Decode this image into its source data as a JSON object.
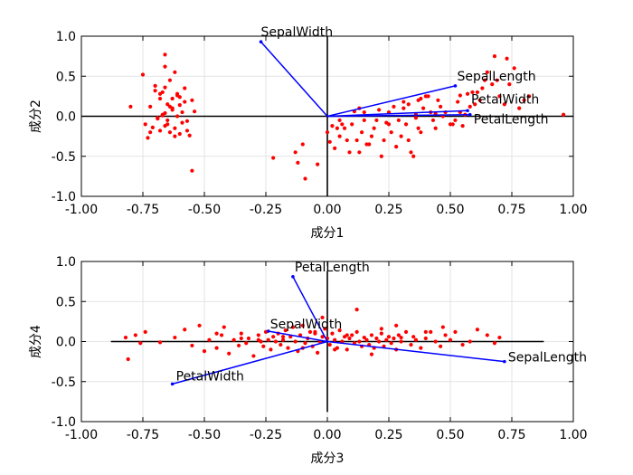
{
  "chart_data": [
    {
      "type": "scatter",
      "subtype": "biplot",
      "xlabel": "成分1",
      "ylabel": "成分2",
      "xlim": [
        -1.0,
        1.0
      ],
      "ylim": [
        -1.0,
        1.0
      ],
      "xticks": [
        "-1.00",
        "-0.75",
        "-0.50",
        "-0.25",
        "0.00",
        "0.25",
        "0.50",
        "0.75",
        "1.00"
      ],
      "yticks": [
        "-1.0",
        "-0.5",
        "0.0",
        "0.5",
        "1.0"
      ],
      "grid": true,
      "vectors": [
        {
          "name": "SepalWidth",
          "x": -0.27,
          "y": 0.93
        },
        {
          "name": "SepalLength",
          "x": 0.52,
          "y": 0.38
        },
        {
          "name": "PetalWidth",
          "x": 0.57,
          "y": 0.07
        },
        {
          "name": "PetalLength",
          "x": 0.58,
          "y": 0.02
        }
      ],
      "points": {
        "x": [
          -0.66,
          -0.62,
          -0.58,
          -0.64,
          -0.7,
          -0.68,
          -0.6,
          -0.55,
          -0.72,
          -0.65,
          -0.63,
          -0.59,
          -0.67,
          -0.61,
          -0.69,
          -0.57,
          -0.74,
          -0.66,
          -0.62,
          -0.68,
          -0.64,
          -0.6,
          -0.56,
          -0.71,
          -0.65,
          -0.63,
          -0.58,
          -0.7,
          -0.67,
          -0.61,
          -0.66,
          -0.59,
          -0.73,
          -0.62,
          -0.68,
          -0.64,
          -0.54,
          -0.69,
          -0.65,
          -0.6,
          -0.63,
          -0.66,
          -0.57,
          -0.61,
          -0.72,
          -0.67,
          -0.8,
          -0.75,
          -0.66,
          -0.55,
          -0.22,
          -0.13,
          -0.12,
          -0.1,
          -0.09,
          -0.04,
          0.01,
          0.0,
          0.02,
          0.03,
          0.05,
          0.05,
          0.07,
          0.08,
          0.09,
          0.1,
          0.12,
          0.13,
          0.14,
          0.15,
          0.15,
          0.17,
          0.18,
          0.19,
          0.2,
          0.22,
          0.23,
          0.25,
          0.25,
          0.26,
          0.28,
          0.29,
          0.3,
          0.31,
          0.32,
          0.33,
          0.34,
          0.35,
          0.36,
          0.37,
          0.38,
          0.39,
          0.4,
          0.42,
          0.43,
          0.44,
          0.45,
          0.46,
          0.48,
          0.5,
          0.52,
          0.53,
          0.54,
          0.55,
          0.56,
          0.58,
          0.6,
          0.61,
          0.62,
          0.65,
          0.67,
          0.68,
          0.7,
          0.72,
          0.74,
          0.76,
          0.78,
          0.8,
          0.82,
          0.96,
          0.13,
          0.21,
          0.27,
          0.33,
          0.37,
          0.41,
          0.47,
          0.51,
          0.57,
          0.63,
          0.69,
          0.73,
          0.44,
          0.36,
          0.24,
          0.16,
          0.06,
          0.04,
          0.11,
          0.31,
          0.38,
          0.54,
          0.59,
          0.64
        ],
        "y": [
          0.77,
          0.55,
          0.35,
          0.45,
          0.32,
          0.28,
          0.24,
          0.2,
          0.12,
          0.15,
          0.08,
          0.05,
          0.02,
          0.0,
          -0.03,
          -0.06,
          -0.1,
          -0.12,
          -0.15,
          -0.18,
          -0.2,
          -0.22,
          -0.24,
          -0.14,
          -0.05,
          0.1,
          0.18,
          0.38,
          0.3,
          0.26,
          0.04,
          -0.08,
          -0.27,
          -0.25,
          0.22,
          0.12,
          0.06,
          -0.02,
          -0.1,
          0.14,
          0.22,
          0.36,
          -0.18,
          0.28,
          -0.2,
          0.01,
          0.12,
          0.52,
          0.62,
          -0.68,
          -0.52,
          -0.45,
          -0.58,
          -0.35,
          -0.78,
          -0.6,
          -0.32,
          -0.2,
          -0.12,
          -0.4,
          -0.25,
          -0.05,
          -0.15,
          -0.3,
          -0.45,
          -0.1,
          -0.3,
          -0.45,
          -0.2,
          -0.05,
          0.05,
          -0.35,
          -0.25,
          -0.15,
          -0.05,
          -0.5,
          -0.3,
          -0.1,
          0.05,
          -0.2,
          -0.38,
          -0.05,
          -0.25,
          0.1,
          -0.1,
          -0.3,
          -0.45,
          -0.5,
          0.02,
          -0.15,
          -0.2,
          0.1,
          0.25,
          0.05,
          -0.05,
          -0.15,
          0.2,
          0.12,
          0.05,
          -0.1,
          -0.05,
          0.18,
          0.05,
          -0.12,
          0.02,
          0.12,
          0.15,
          0.3,
          0.2,
          0.55,
          0.4,
          0.75,
          0.25,
          0.15,
          0.4,
          0.6,
          0.1,
          0.2,
          0.25,
          0.02,
          0.1,
          0.08,
          0.12,
          0.15,
          0.2,
          0.25,
          0.0,
          -0.1,
          0.28,
          0.35,
          0.45,
          0.72,
          0.03,
          -0.02,
          -0.08,
          -0.35,
          -0.1,
          -0.15,
          0.06,
          0.18,
          0.22,
          0.26,
          0.3,
          0.45
        ]
      }
    },
    {
      "type": "scatter",
      "subtype": "biplot",
      "xlabel": "成分3",
      "ylabel": "成分4",
      "xlim": [
        -1.0,
        1.0
      ],
      "ylim": [
        -1.0,
        1.0
      ],
      "xticks": [
        "-1.00",
        "-0.75",
        "-0.50",
        "-0.25",
        "0.00",
        "0.25",
        "0.50",
        "0.75",
        "1.00"
      ],
      "yticks": [
        "-1.0",
        "-0.5",
        "0.0",
        "0.5",
        "1.0"
      ],
      "grid": true,
      "vectors": [
        {
          "name": "PetalLength",
          "x": -0.14,
          "y": 0.81
        },
        {
          "name": "SepalWidth",
          "x": -0.24,
          "y": 0.13
        },
        {
          "name": "SepalLength",
          "x": 0.72,
          "y": -0.25
        },
        {
          "name": "PetalWidth",
          "x": -0.63,
          "y": -0.53
        }
      ],
      "points": {
        "x": [
          -0.82,
          -0.81,
          -0.78,
          -0.76,
          -0.74,
          -0.68,
          -0.62,
          -0.58,
          -0.55,
          -0.52,
          -0.5,
          -0.48,
          -0.45,
          -0.43,
          -0.42,
          -0.4,
          -0.38,
          -0.36,
          -0.35,
          -0.33,
          -0.32,
          -0.3,
          -0.28,
          -0.27,
          -0.26,
          -0.25,
          -0.24,
          -0.23,
          -0.22,
          -0.21,
          -0.2,
          -0.19,
          -0.18,
          -0.17,
          -0.16,
          -0.15,
          -0.14,
          -0.13,
          -0.12,
          -0.11,
          -0.1,
          -0.09,
          -0.08,
          -0.07,
          -0.06,
          -0.05,
          -0.04,
          -0.03,
          -0.02,
          -0.01,
          0.0,
          0.01,
          0.02,
          0.03,
          0.04,
          0.05,
          0.06,
          0.07,
          0.08,
          0.09,
          0.1,
          0.11,
          0.12,
          0.13,
          0.14,
          0.15,
          0.16,
          0.17,
          0.18,
          0.19,
          0.2,
          0.21,
          0.22,
          0.23,
          0.24,
          0.25,
          0.26,
          0.27,
          0.28,
          0.29,
          0.3,
          0.32,
          0.34,
          0.35,
          0.36,
          0.38,
          0.4,
          0.42,
          0.44,
          0.46,
          0.48,
          0.5,
          0.52,
          0.55,
          0.58,
          0.61,
          0.65,
          0.68,
          0.7,
          -0.35,
          -0.18,
          -0.05,
          0.12,
          0.28,
          -0.02,
          0.03,
          0.18,
          -0.28,
          0.22,
          0.4,
          -0.1,
          0.08,
          0.3,
          0.47,
          -0.45
        ],
        "y": [
          0.05,
          -0.22,
          0.08,
          -0.02,
          0.12,
          -0.01,
          0.05,
          0.15,
          -0.05,
          0.2,
          -0.12,
          0.02,
          -0.08,
          0.08,
          0.18,
          -0.15,
          0.02,
          -0.05,
          0.1,
          -0.02,
          0.04,
          -0.18,
          0.08,
          0.0,
          -0.06,
          0.12,
          0.02,
          -0.1,
          0.06,
          0.0,
          0.1,
          -0.04,
          0.02,
          0.14,
          -0.08,
          0.06,
          0.18,
          0.0,
          -0.12,
          0.08,
          0.2,
          -0.02,
          0.04,
          0.12,
          -0.06,
          0.1,
          -0.14,
          0.0,
          0.06,
          0.16,
          0.04,
          -0.04,
          0.1,
          0.02,
          -0.08,
          0.14,
          0.0,
          0.06,
          -0.1,
          0.04,
          0.08,
          -0.02,
          0.12,
          0.0,
          -0.06,
          0.05,
          0.02,
          -0.04,
          0.08,
          -0.08,
          0.04,
          0.0,
          0.1,
          -0.06,
          0.02,
          0.06,
          -0.02,
          0.04,
          -0.1,
          0.08,
          0.0,
          0.12,
          -0.04,
          0.06,
          0.02,
          -0.08,
          0.04,
          0.12,
          0.0,
          -0.06,
          0.08,
          0.02,
          0.12,
          -0.04,
          0.0,
          0.15,
          0.08,
          -0.02,
          0.05,
          0.04,
          0.06,
          0.12,
          0.4,
          0.2,
          0.3,
          -0.1,
          -0.16,
          0.02,
          0.16,
          0.12,
          -0.08,
          0.08,
          0.05,
          0.18,
          0.1
        ]
      }
    }
  ]
}
